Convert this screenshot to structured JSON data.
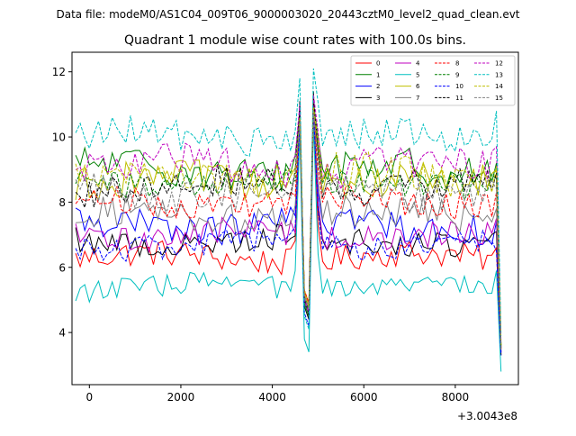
{
  "chart_data": {
    "type": "line",
    "suptitle": "Data file: modeM0/AS1C04_009T06_9000003020_20443cztM0_level2_quad_clean.evt",
    "title": "Quadrant 1 module wise count rates with 100.0s bins.",
    "xlabel": "",
    "ylabel": "",
    "x_offset_label": "+3.0043e8",
    "xlim": [
      -380,
      9380
    ],
    "ylim": [
      2.4,
      12.6
    ],
    "x_ticks": [
      0,
      2000,
      4000,
      6000,
      8000
    ],
    "x_tick_labels": [
      "0",
      "2000",
      "4000",
      "6000",
      "8000"
    ],
    "y_ticks": [
      4,
      6,
      8,
      10,
      12
    ],
    "y_tick_labels": [
      "4",
      "6",
      "8",
      "10",
      "12"
    ],
    "legend_position": "top-right",
    "x_start": -300,
    "x_step": 100,
    "x_end": 9000,
    "series": [
      {
        "name": "0",
        "color": "#ff0000",
        "style": "solid",
        "base": 6.3,
        "amp": 0.3,
        "peak": 10.8,
        "dip": 4.8,
        "end_high": 6.6,
        "end_low": 3.3
      },
      {
        "name": "1",
        "color": "#008000",
        "style": "solid",
        "base": 9.0,
        "amp": 0.4,
        "peak": 11.0,
        "dip": 4.5,
        "end_high": 9.2,
        "end_low": 3.6
      },
      {
        "name": "2",
        "color": "#0000ff",
        "style": "solid",
        "base": 7.3,
        "amp": 0.35,
        "peak": 10.9,
        "dip": 4.6,
        "end_high": 7.4,
        "end_low": 3.4
      },
      {
        "name": "3",
        "color": "#000000",
        "style": "solid",
        "base": 6.8,
        "amp": 0.3,
        "peak": 11.4,
        "dip": 4.4,
        "end_high": 7.1,
        "end_low": 3.3
      },
      {
        "name": "4",
        "color": "#bf00bf",
        "style": "solid",
        "base": 7.0,
        "amp": 0.3,
        "peak": 11.2,
        "dip": 4.7,
        "end_high": 7.5,
        "end_low": 3.4
      },
      {
        "name": "5",
        "color": "#00bfbf",
        "style": "solid",
        "base": 5.4,
        "amp": 0.25,
        "peak": 10.4,
        "dip": 3.4,
        "end_high": 5.9,
        "end_low": 2.8
      },
      {
        "name": "6",
        "color": "#bfbf00",
        "style": "solid",
        "base": 8.6,
        "amp": 0.4,
        "peak": 10.6,
        "dip": 4.9,
        "end_high": 9.0,
        "end_low": 3.5
      },
      {
        "name": "7",
        "color": "#808080",
        "style": "solid",
        "base": 7.6,
        "amp": 0.35,
        "peak": 10.7,
        "dip": 4.8,
        "end_high": 7.8,
        "end_low": 3.4
      },
      {
        "name": "8",
        "color": "#ff0000",
        "style": "dashed",
        "base": 8.0,
        "amp": 0.3,
        "peak": 11.0,
        "dip": 4.9,
        "end_high": 8.3,
        "end_low": 3.5
      },
      {
        "name": "9",
        "color": "#008000",
        "style": "dashed",
        "base": 8.6,
        "amp": 0.3,
        "peak": 11.1,
        "dip": 4.7,
        "end_high": 8.7,
        "end_low": 3.6
      },
      {
        "name": "10",
        "color": "#0000ff",
        "style": "dashed",
        "base": 6.7,
        "amp": 0.3,
        "peak": 10.8,
        "dip": 4.2,
        "end_high": 6.5,
        "end_low": 3.3
      },
      {
        "name": "11",
        "color": "#000000",
        "style": "dashed",
        "base": 8.5,
        "amp": 0.35,
        "peak": 11.2,
        "dip": 4.6,
        "end_high": 8.9,
        "end_low": 3.5
      },
      {
        "name": "12",
        "color": "#bf00bf",
        "style": "dashed",
        "base": 9.1,
        "amp": 0.4,
        "peak": 11.3,
        "dip": 4.6,
        "end_high": 9.7,
        "end_low": 3.7
      },
      {
        "name": "13",
        "color": "#00bfbf",
        "style": "dashed",
        "base": 10.0,
        "amp": 0.35,
        "peak": 12.1,
        "dip": 4.1,
        "end_high": 10.8,
        "end_low": 3.9
      },
      {
        "name": "14",
        "color": "#bfbf00",
        "style": "dashed",
        "base": 8.8,
        "amp": 0.4,
        "peak": 10.9,
        "dip": 4.8,
        "end_high": 9.1,
        "end_low": 3.6
      },
      {
        "name": "15",
        "color": "#808080",
        "style": "dashed",
        "base": 8.3,
        "amp": 0.35,
        "peak": 10.8,
        "dip": 4.7,
        "end_high": 8.4,
        "end_low": 3.5
      }
    ]
  }
}
